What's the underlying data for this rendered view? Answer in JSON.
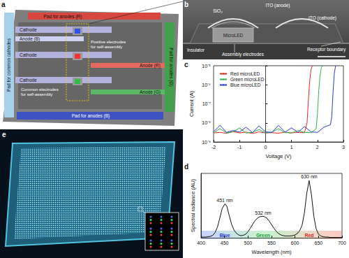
{
  "panel_labels": [
    "a",
    "b",
    "c",
    "d",
    "e"
  ],
  "diagram_a": {
    "pads": [
      "Pad for anodes (R)",
      "Pad for anodes (G)",
      "Pad for anodes (B)",
      "Pad for common cathodes"
    ],
    "cathodes": [
      "Cathode",
      "Cathode",
      "Cathode"
    ],
    "anodes": [
      "Anode (B)",
      "Anode (R)",
      "Anode (G)"
    ],
    "electrodes": [
      "Positive electrodes for self-assembly",
      "Common electrodes for self-assembly"
    ]
  },
  "image_b": {
    "labels": [
      "SiO₂",
      "ITO (anode)",
      "ITO (cathode)",
      "MicroLED",
      "Insulator",
      "Assembly electrodes",
      "Receptor boundary"
    ]
  },
  "chart_data": [
    {
      "type": "line",
      "x_label": "Voltage (V)",
      "y_label": "Current (A)",
      "log": "y",
      "xlim": [
        -2,
        3
      ],
      "xticks": [
        -2,
        -1,
        0,
        1,
        2,
        3
      ],
      "ylim": [
        1e-09,
        1e-05
      ],
      "yticks": [
        {
          "value": 1e-09,
          "label": "10⁻⁹"
        },
        {
          "value": 1e-08,
          "label": "10⁻⁸"
        },
        {
          "value": 1e-07,
          "label": "10⁻⁷"
        },
        {
          "value": 1e-06,
          "label": "10⁻⁶"
        },
        {
          "value": 1e-05,
          "label": "10⁻⁵"
        }
      ],
      "legend": "top-left",
      "series": [
        {
          "name": "Red microLED",
          "color": "#e8281e",
          "x": [
            -2,
            -1.75,
            -1.5,
            -1.25,
            -1,
            -0.75,
            -0.5,
            -0.25,
            0,
            0.25,
            0.5,
            0.75,
            1,
            1.25,
            1.5,
            1.6,
            1.65,
            1.7,
            1.75,
            1.8
          ],
          "values": [
            3e-09,
            3.2e-09,
            2.9e-09,
            3.5e-09,
            3e-09,
            3.3e-09,
            2.8e-09,
            3.4e-09,
            3e-09,
            3.1e-09,
            2.9e-09,
            3.3e-09,
            3e-09,
            3.2e-09,
            3.1e-09,
            1e-08,
            1.5e-07,
            1.5e-06,
            6e-06,
            1e-05
          ]
        },
        {
          "name": "Green microLED",
          "color": "#2fb34a",
          "x": [
            -2,
            -1.75,
            -1.5,
            -1.25,
            -1,
            -0.75,
            -0.5,
            -0.25,
            0,
            0.25,
            0.5,
            0.75,
            1,
            1.25,
            1.5,
            1.75,
            1.95,
            2,
            2.05,
            2.1,
            2.15,
            2.2
          ],
          "values": [
            3.1e-09,
            5e-09,
            3e-09,
            3.4e-09,
            5.5e-09,
            3e-09,
            3.2e-09,
            4.5e-09,
            3e-09,
            3.3e-09,
            5e-09,
            3.1e-09,
            3e-09,
            4e-09,
            3.2e-09,
            3.1e-09,
            5e-09,
            3e-08,
            5e-07,
            3e-06,
            8e-06,
            1e-05
          ]
        },
        {
          "name": "Blue microLED",
          "color": "#2a3bd6",
          "x": [
            -2,
            -1.75,
            -1.5,
            -1.25,
            -1,
            -0.75,
            -0.5,
            -0.25,
            0,
            0.25,
            0.5,
            0.75,
            1,
            1.25,
            1.5,
            1.75,
            2,
            2.25,
            2.5,
            2.55,
            2.6,
            2.65,
            2.7
          ],
          "values": [
            3.5e-09,
            7.5e-09,
            3.2e-09,
            4e-09,
            3.3e-09,
            6e-09,
            3.1e-09,
            7e-09,
            3.4e-09,
            3.2e-09,
            7.5e-09,
            3.3e-09,
            5.5e-09,
            3.2e-09,
            6.5e-09,
            3.4e-09,
            3.2e-09,
            6e-09,
            8e-09,
            2e-08,
            4e-07,
            4e-06,
            1e-05
          ]
        }
      ]
    },
    {
      "type": "line",
      "x_label": "Wavelength (nm)",
      "y_label": "Spectral radiance (AU)",
      "xlim": [
        400,
        700
      ],
      "xticks": [
        400,
        450,
        500,
        550,
        600,
        650,
        700
      ],
      "ylim": [
        0,
        1.8
      ],
      "tick_labels": "x",
      "color": "#111111",
      "x": [
        400,
        405,
        410,
        415,
        420,
        425,
        430,
        435,
        440,
        445,
        451,
        455,
        460,
        465,
        470,
        475,
        480,
        485,
        490,
        495,
        500,
        505,
        510,
        515,
        520,
        525,
        532,
        535,
        540,
        545,
        550,
        555,
        560,
        565,
        570,
        575,
        580,
        585,
        590,
        595,
        600,
        605,
        610,
        615,
        620,
        625,
        630,
        635,
        640,
        645,
        650,
        655,
        660,
        665,
        670,
        675,
        680,
        685,
        690,
        695,
        700
      ],
      "values": [
        0.02,
        0.02,
        0.02,
        0.03,
        0.04,
        0.07,
        0.15,
        0.3,
        0.55,
        0.82,
        0.95,
        0.88,
        0.62,
        0.38,
        0.22,
        0.13,
        0.08,
        0.06,
        0.07,
        0.1,
        0.17,
        0.27,
        0.38,
        0.48,
        0.55,
        0.59,
        0.6,
        0.59,
        0.55,
        0.47,
        0.37,
        0.27,
        0.18,
        0.12,
        0.08,
        0.06,
        0.05,
        0.05,
        0.05,
        0.06,
        0.08,
        0.12,
        0.2,
        0.35,
        0.7,
        1.25,
        1.6,
        1.2,
        0.6,
        0.25,
        0.1,
        0.05,
        0.03,
        0.02,
        0.02,
        0.01,
        0.01,
        0.01,
        0.01,
        0.01,
        0.01
      ],
      "annotations": [
        "451 nm",
        "532 nm",
        "630 nm",
        "Blue",
        "Green",
        "Red"
      ]
    }
  ]
}
